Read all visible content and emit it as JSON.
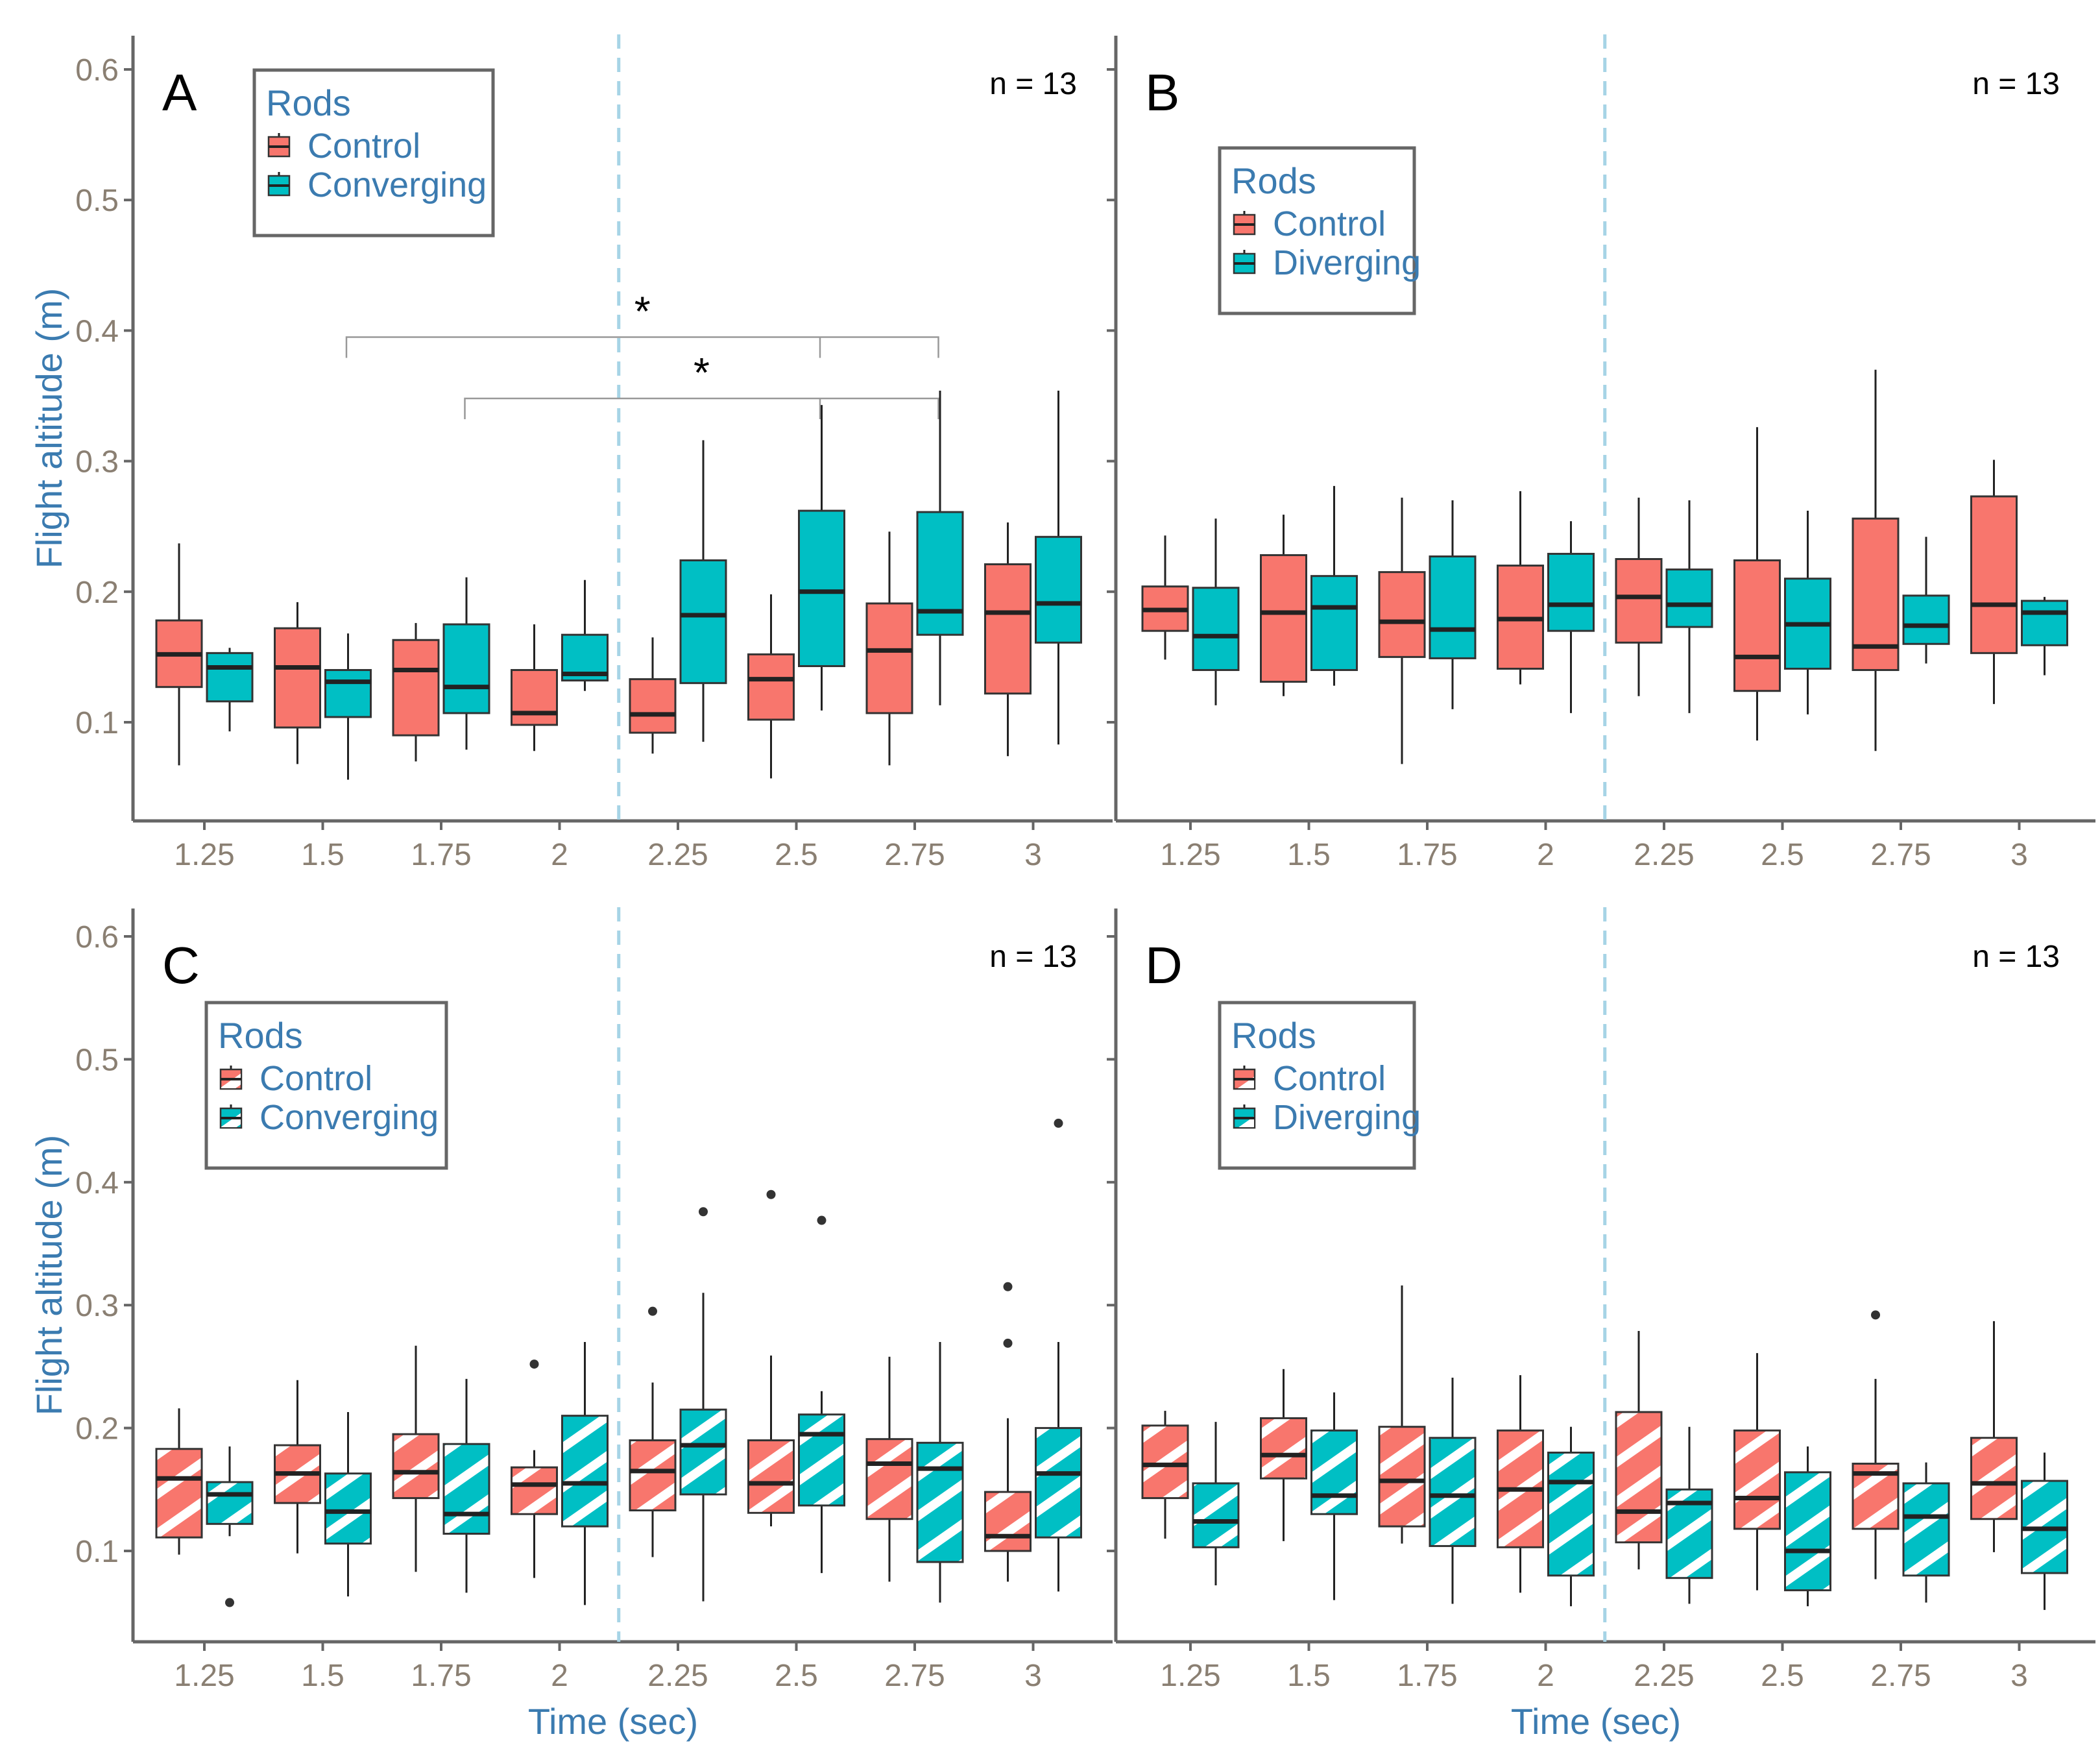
{
  "colors": {
    "control": "#f8766d",
    "treatment": "#00bfc4",
    "axis": "#666666",
    "vline": "#a6d4e6",
    "text_axis": "#8a7f72",
    "text_title": "#3b7bb0"
  },
  "axes": {
    "x_title": "Time (sec)",
    "y_title": "Flight altitude (m)",
    "y_ticks": [
      "0.1",
      "0.2",
      "0.3",
      "0.4",
      "0.5",
      "0.6"
    ],
    "x_ticks": [
      "1.25",
      "1.5",
      "1.75",
      "2",
      "2.25",
      "2.5",
      "2.75",
      "3"
    ]
  },
  "chart_data": [
    {
      "panel": "A",
      "type": "boxplot",
      "n_label": "n = 13",
      "hatched": false,
      "x_label": "",
      "y_label": "Flight altitude (m)",
      "ylim": [
        0.025,
        0.62
      ],
      "vline_at": 2.125,
      "legend": {
        "title": "Rods",
        "items": [
          "Control",
          "Converging"
        ],
        "placement": "top-left"
      },
      "significance": [
        {
          "label": "*",
          "from": 1.55,
          "to": [
            2.55,
            2.8
          ],
          "level": 0.395
        },
        {
          "label": "*",
          "from": 1.8,
          "to": [
            2.55,
            2.8
          ],
          "level": 0.348
        }
      ],
      "boxes": [
        {
          "time": 1.25,
          "group": "Control",
          "min": 0.067,
          "q1": 0.127,
          "median": 0.152,
          "q3": 0.178,
          "max": 0.237,
          "outliers": []
        },
        {
          "time": 1.25,
          "group": "Converging",
          "min": 0.093,
          "q1": 0.116,
          "median": 0.142,
          "q3": 0.153,
          "max": 0.157,
          "outliers": []
        },
        {
          "time": 1.5,
          "group": "Control",
          "min": 0.068,
          "q1": 0.096,
          "median": 0.142,
          "q3": 0.172,
          "max": 0.192,
          "outliers": []
        },
        {
          "time": 1.5,
          "group": "Converging",
          "min": 0.056,
          "q1": 0.104,
          "median": 0.131,
          "q3": 0.14,
          "max": 0.168,
          "outliers": []
        },
        {
          "time": 1.75,
          "group": "Control",
          "min": 0.07,
          "q1": 0.09,
          "median": 0.14,
          "q3": 0.163,
          "max": 0.176,
          "outliers": []
        },
        {
          "time": 1.75,
          "group": "Converging",
          "min": 0.079,
          "q1": 0.107,
          "median": 0.127,
          "q3": 0.175,
          "max": 0.211,
          "outliers": []
        },
        {
          "time": 2,
          "group": "Control",
          "min": 0.078,
          "q1": 0.098,
          "median": 0.107,
          "q3": 0.14,
          "max": 0.175,
          "outliers": []
        },
        {
          "time": 2,
          "group": "Converging",
          "min": 0.124,
          "q1": 0.132,
          "median": 0.137,
          "q3": 0.167,
          "max": 0.209,
          "outliers": []
        },
        {
          "time": 2.25,
          "group": "Control",
          "min": 0.076,
          "q1": 0.092,
          "median": 0.106,
          "q3": 0.133,
          "max": 0.165,
          "outliers": []
        },
        {
          "time": 2.25,
          "group": "Converging",
          "min": 0.085,
          "q1": 0.13,
          "median": 0.182,
          "q3": 0.224,
          "max": 0.316,
          "outliers": []
        },
        {
          "time": 2.5,
          "group": "Control",
          "min": 0.057,
          "q1": 0.102,
          "median": 0.133,
          "q3": 0.152,
          "max": 0.198,
          "outliers": []
        },
        {
          "time": 2.5,
          "group": "Converging",
          "min": 0.109,
          "q1": 0.143,
          "median": 0.2,
          "q3": 0.262,
          "max": 0.343,
          "outliers": []
        },
        {
          "time": 2.75,
          "group": "Control",
          "min": 0.067,
          "q1": 0.107,
          "median": 0.155,
          "q3": 0.191,
          "max": 0.246,
          "outliers": []
        },
        {
          "time": 2.75,
          "group": "Converging",
          "min": 0.113,
          "q1": 0.167,
          "median": 0.185,
          "q3": 0.261,
          "max": 0.354,
          "outliers": []
        },
        {
          "time": 3,
          "group": "Control",
          "min": 0.074,
          "q1": 0.122,
          "median": 0.184,
          "q3": 0.221,
          "max": 0.253,
          "outliers": []
        },
        {
          "time": 3,
          "group": "Converging",
          "min": 0.083,
          "q1": 0.161,
          "median": 0.191,
          "q3": 0.242,
          "max": 0.354,
          "outliers": []
        }
      ]
    },
    {
      "panel": "B",
      "type": "boxplot",
      "n_label": "n = 13",
      "hatched": false,
      "x_label": "",
      "y_label": "",
      "ylim": [
        0.025,
        0.62
      ],
      "vline_at": 2.125,
      "legend": {
        "title": "Rods",
        "items": [
          "Control",
          "Diverging"
        ],
        "placement": "top-left"
      },
      "significance": [],
      "boxes": [
        {
          "time": 1.25,
          "group": "Control",
          "min": 0.148,
          "q1": 0.17,
          "median": 0.186,
          "q3": 0.204,
          "max": 0.243,
          "outliers": []
        },
        {
          "time": 1.25,
          "group": "Diverging",
          "min": 0.113,
          "q1": 0.14,
          "median": 0.166,
          "q3": 0.203,
          "max": 0.256,
          "outliers": []
        },
        {
          "time": 1.5,
          "group": "Control",
          "min": 0.12,
          "q1": 0.131,
          "median": 0.184,
          "q3": 0.228,
          "max": 0.259,
          "outliers": []
        },
        {
          "time": 1.5,
          "group": "Diverging",
          "min": 0.128,
          "q1": 0.14,
          "median": 0.188,
          "q3": 0.212,
          "max": 0.281,
          "outliers": []
        },
        {
          "time": 1.75,
          "group": "Control",
          "min": 0.068,
          "q1": 0.15,
          "median": 0.177,
          "q3": 0.215,
          "max": 0.272,
          "outliers": []
        },
        {
          "time": 1.75,
          "group": "Diverging",
          "min": 0.11,
          "q1": 0.149,
          "median": 0.171,
          "q3": 0.227,
          "max": 0.27,
          "outliers": []
        },
        {
          "time": 2,
          "group": "Control",
          "min": 0.129,
          "q1": 0.141,
          "median": 0.179,
          "q3": 0.22,
          "max": 0.277,
          "outliers": []
        },
        {
          "time": 2,
          "group": "Diverging",
          "min": 0.107,
          "q1": 0.17,
          "median": 0.19,
          "q3": 0.229,
          "max": 0.254,
          "outliers": []
        },
        {
          "time": 2.25,
          "group": "Control",
          "min": 0.12,
          "q1": 0.161,
          "median": 0.196,
          "q3": 0.225,
          "max": 0.272,
          "outliers": []
        },
        {
          "time": 2.25,
          "group": "Diverging",
          "min": 0.107,
          "q1": 0.173,
          "median": 0.19,
          "q3": 0.217,
          "max": 0.27,
          "outliers": []
        },
        {
          "time": 2.5,
          "group": "Control",
          "min": 0.086,
          "q1": 0.124,
          "median": 0.15,
          "q3": 0.224,
          "max": 0.326,
          "outliers": []
        },
        {
          "time": 2.5,
          "group": "Diverging",
          "min": 0.106,
          "q1": 0.141,
          "median": 0.175,
          "q3": 0.21,
          "max": 0.262,
          "outliers": []
        },
        {
          "time": 2.75,
          "group": "Control",
          "min": 0.078,
          "q1": 0.14,
          "median": 0.158,
          "q3": 0.256,
          "max": 0.37,
          "outliers": []
        },
        {
          "time": 2.75,
          "group": "Diverging",
          "min": 0.145,
          "q1": 0.16,
          "median": 0.174,
          "q3": 0.197,
          "max": 0.242,
          "outliers": []
        },
        {
          "time": 3,
          "group": "Control",
          "min": 0.114,
          "q1": 0.153,
          "median": 0.19,
          "q3": 0.273,
          "max": 0.301,
          "outliers": []
        },
        {
          "time": 3,
          "group": "Diverging",
          "min": 0.136,
          "q1": 0.159,
          "median": 0.184,
          "q3": 0.193,
          "max": 0.196,
          "outliers": []
        }
      ]
    },
    {
      "panel": "C",
      "type": "boxplot",
      "n_label": "n = 13",
      "hatched": true,
      "x_label": "Time (sec)",
      "y_label": "Flight altitude (m)",
      "ylim": [
        0.025,
        0.62
      ],
      "vline_at": 2.125,
      "legend": {
        "title": "Rods",
        "items": [
          "Control",
          "Converging"
        ],
        "placement": "top-left"
      },
      "significance": [],
      "boxes": [
        {
          "time": 1.25,
          "group": "Control",
          "min": 0.097,
          "q1": 0.111,
          "median": 0.159,
          "q3": 0.183,
          "max": 0.216,
          "outliers": []
        },
        {
          "time": 1.25,
          "group": "Converging",
          "min": 0.112,
          "q1": 0.122,
          "median": 0.146,
          "q3": 0.156,
          "max": 0.185,
          "outliers": [
            0.058
          ]
        },
        {
          "time": 1.5,
          "group": "Control",
          "min": 0.098,
          "q1": 0.139,
          "median": 0.163,
          "q3": 0.186,
          "max": 0.239,
          "outliers": []
        },
        {
          "time": 1.5,
          "group": "Converging",
          "min": 0.063,
          "q1": 0.106,
          "median": 0.132,
          "q3": 0.163,
          "max": 0.213,
          "outliers": []
        },
        {
          "time": 1.75,
          "group": "Control",
          "min": 0.083,
          "q1": 0.143,
          "median": 0.164,
          "q3": 0.195,
          "max": 0.267,
          "outliers": []
        },
        {
          "time": 1.75,
          "group": "Converging",
          "min": 0.066,
          "q1": 0.114,
          "median": 0.13,
          "q3": 0.187,
          "max": 0.24,
          "outliers": []
        },
        {
          "time": 2,
          "group": "Control",
          "min": 0.078,
          "q1": 0.13,
          "median": 0.154,
          "q3": 0.168,
          "max": 0.182,
          "outliers": [
            0.252
          ]
        },
        {
          "time": 2,
          "group": "Converging",
          "min": 0.056,
          "q1": 0.12,
          "median": 0.155,
          "q3": 0.21,
          "max": 0.27,
          "outliers": []
        },
        {
          "time": 2.25,
          "group": "Control",
          "min": 0.095,
          "q1": 0.133,
          "median": 0.165,
          "q3": 0.19,
          "max": 0.237,
          "outliers": [
            0.295
          ]
        },
        {
          "time": 2.25,
          "group": "Converging",
          "min": 0.059,
          "q1": 0.146,
          "median": 0.186,
          "q3": 0.215,
          "max": 0.31,
          "outliers": [
            0.376
          ]
        },
        {
          "time": 2.5,
          "group": "Control",
          "min": 0.12,
          "q1": 0.131,
          "median": 0.155,
          "q3": 0.19,
          "max": 0.259,
          "outliers": [
            0.39
          ]
        },
        {
          "time": 2.5,
          "group": "Converging",
          "min": 0.082,
          "q1": 0.137,
          "median": 0.195,
          "q3": 0.211,
          "max": 0.23,
          "outliers": [
            0.369
          ]
        },
        {
          "time": 2.75,
          "group": "Control",
          "min": 0.075,
          "q1": 0.126,
          "median": 0.171,
          "q3": 0.191,
          "max": 0.258,
          "outliers": []
        },
        {
          "time": 2.75,
          "group": "Converging",
          "min": 0.058,
          "q1": 0.091,
          "median": 0.167,
          "q3": 0.188,
          "max": 0.27,
          "outliers": []
        },
        {
          "time": 3,
          "group": "Control",
          "min": 0.075,
          "q1": 0.1,
          "median": 0.112,
          "q3": 0.148,
          "max": 0.208,
          "outliers": [
            0.269,
            0.315
          ]
        },
        {
          "time": 3,
          "group": "Converging",
          "min": 0.067,
          "q1": 0.111,
          "median": 0.163,
          "q3": 0.2,
          "max": 0.27,
          "outliers": [
            0.448
          ]
        }
      ]
    },
    {
      "panel": "D",
      "type": "boxplot",
      "n_label": "n = 13",
      "hatched": true,
      "x_label": "Time (sec)",
      "y_label": "",
      "ylim": [
        0.025,
        0.62
      ],
      "vline_at": 2.125,
      "legend": {
        "title": "Rods",
        "items": [
          "Control",
          "Diverging"
        ],
        "placement": "top-left"
      },
      "significance": [],
      "boxes": [
        {
          "time": 1.25,
          "group": "Control",
          "min": 0.11,
          "q1": 0.143,
          "median": 0.17,
          "q3": 0.202,
          "max": 0.214,
          "outliers": []
        },
        {
          "time": 1.25,
          "group": "Diverging",
          "min": 0.072,
          "q1": 0.103,
          "median": 0.124,
          "q3": 0.155,
          "max": 0.205,
          "outliers": []
        },
        {
          "time": 1.5,
          "group": "Control",
          "min": 0.108,
          "q1": 0.159,
          "median": 0.178,
          "q3": 0.208,
          "max": 0.248,
          "outliers": []
        },
        {
          "time": 1.5,
          "group": "Diverging",
          "min": 0.06,
          "q1": 0.13,
          "median": 0.145,
          "q3": 0.198,
          "max": 0.229,
          "outliers": []
        },
        {
          "time": 1.75,
          "group": "Control",
          "min": 0.106,
          "q1": 0.12,
          "median": 0.157,
          "q3": 0.201,
          "max": 0.316,
          "outliers": []
        },
        {
          "time": 1.75,
          "group": "Diverging",
          "min": 0.057,
          "q1": 0.104,
          "median": 0.145,
          "q3": 0.192,
          "max": 0.241,
          "outliers": []
        },
        {
          "time": 2,
          "group": "Control",
          "min": 0.066,
          "q1": 0.103,
          "median": 0.15,
          "q3": 0.198,
          "max": 0.243,
          "outliers": []
        },
        {
          "time": 2,
          "group": "Diverging",
          "min": 0.055,
          "q1": 0.08,
          "median": 0.156,
          "q3": 0.18,
          "max": 0.201,
          "outliers": []
        },
        {
          "time": 2.25,
          "group": "Control",
          "min": 0.085,
          "q1": 0.107,
          "median": 0.132,
          "q3": 0.213,
          "max": 0.279,
          "outliers": []
        },
        {
          "time": 2.25,
          "group": "Diverging",
          "min": 0.057,
          "q1": 0.078,
          "median": 0.139,
          "q3": 0.15,
          "max": 0.201,
          "outliers": []
        },
        {
          "time": 2.5,
          "group": "Control",
          "min": 0.068,
          "q1": 0.118,
          "median": 0.143,
          "q3": 0.198,
          "max": 0.261,
          "outliers": []
        },
        {
          "time": 2.5,
          "group": "Diverging",
          "min": 0.055,
          "q1": 0.068,
          "median": 0.1,
          "q3": 0.164,
          "max": 0.185,
          "outliers": []
        },
        {
          "time": 2.75,
          "group": "Control",
          "min": 0.077,
          "q1": 0.118,
          "median": 0.163,
          "q3": 0.171,
          "max": 0.24,
          "outliers": [
            0.292
          ]
        },
        {
          "time": 2.75,
          "group": "Diverging",
          "min": 0.058,
          "q1": 0.08,
          "median": 0.128,
          "q3": 0.155,
          "max": 0.172,
          "outliers": []
        },
        {
          "time": 3,
          "group": "Control",
          "min": 0.099,
          "q1": 0.126,
          "median": 0.155,
          "q3": 0.192,
          "max": 0.287,
          "outliers": []
        },
        {
          "time": 3,
          "group": "Diverging",
          "min": 0.052,
          "q1": 0.082,
          "median": 0.118,
          "q3": 0.157,
          "max": 0.18,
          "outliers": []
        }
      ]
    }
  ]
}
